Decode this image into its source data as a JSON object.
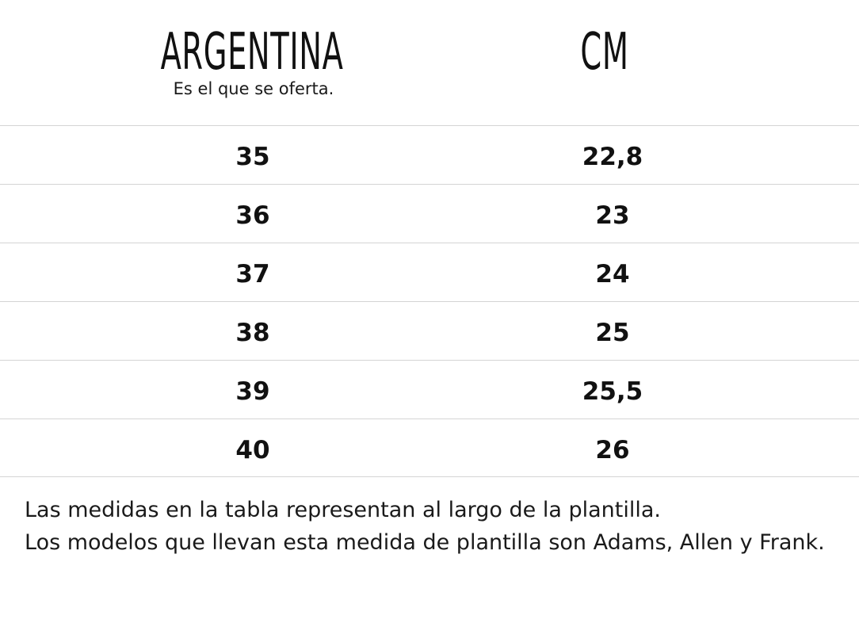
{
  "header": {
    "left_title": "ARGENTINA",
    "left_subtitle": "Es el que se oferta.",
    "right_title": "CM"
  },
  "rows": [
    {
      "ar": "35",
      "cm": "22,8"
    },
    {
      "ar": "36",
      "cm": "23"
    },
    {
      "ar": "37",
      "cm": "24"
    },
    {
      "ar": "38",
      "cm": "25"
    },
    {
      "ar": "39",
      "cm": "25,5"
    },
    {
      "ar": "40",
      "cm": "26"
    }
  ],
  "notes": {
    "line1": "Las medidas en la tabla representan al largo de la plantilla.",
    "line2": "Los modelos que llevan esta medida de plantilla son Adams, Allen y Frank."
  }
}
